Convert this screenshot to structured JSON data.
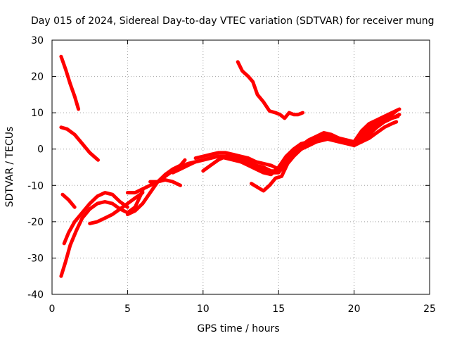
{
  "chart_data": {
    "type": "line",
    "title": "Day 015 of 2024, Sidereal Day-to-day VTEC variation (SDTVAR) for receiver mung",
    "xlabel": "GPS time / hours",
    "ylabel": "SDTVAR / TECUs",
    "xlim": [
      0,
      25
    ],
    "ylim": [
      -40,
      30
    ],
    "xticks": [
      0,
      5,
      10,
      15,
      20,
      25
    ],
    "yticks": [
      -40,
      -30,
      -20,
      -10,
      0,
      10,
      20,
      30
    ],
    "xtick_labels": [
      "0",
      "5",
      "10",
      "15",
      "20",
      "25"
    ],
    "ytick_labels": [
      "-40",
      "-30",
      "-20",
      "-10",
      "0",
      "10",
      "20",
      "30"
    ],
    "grid": true,
    "legend": "none",
    "color": "#ff0000",
    "series": [
      {
        "x": [
          0.6,
          0.9,
          1.2,
          1.5,
          1.75
        ],
        "y": [
          25.5,
          22,
          18,
          14.5,
          11
        ]
      },
      {
        "x": [
          0.6,
          1.0,
          1.5,
          2.0,
          2.5,
          3.05
        ],
        "y": [
          6,
          5.5,
          4,
          1.5,
          -1,
          -3
        ]
      },
      {
        "x": [
          0.7,
          1.1,
          1.5
        ],
        "y": [
          -12.5,
          -14,
          -16
        ]
      },
      {
        "x": [
          0.8,
          1.1,
          1.5,
          2.0,
          2.5,
          3.0,
          3.5,
          4.0,
          4.5,
          5.0
        ],
        "y": [
          -26,
          -23,
          -20,
          -17.5,
          -15,
          -13,
          -12,
          -12.5,
          -14.5,
          -16
        ]
      },
      {
        "x": [
          0.6,
          0.9,
          1.2,
          1.6,
          2.0,
          2.5,
          3.0,
          3.5,
          4.0,
          4.5,
          5.0,
          5.5,
          6.0
        ],
        "y": [
          -35,
          -31,
          -26.5,
          -22.5,
          -19,
          -16.5,
          -15,
          -14.5,
          -15,
          -16.5,
          -17.5,
          -16,
          -11.5
        ]
      },
      {
        "x": [
          2.5,
          3.0,
          3.5,
          4.0,
          4.5,
          5.0,
          5.5,
          6.0
        ],
        "y": [
          -20.5,
          -20,
          -19,
          -18,
          -16.5,
          -15,
          -13.5,
          -12
        ]
      },
      {
        "x": [
          5.0,
          5.5,
          6.0,
          6.5,
          7.0,
          7.5,
          8.0,
          8.5,
          8.8
        ],
        "y": [
          -18,
          -17,
          -15,
          -12,
          -9,
          -7,
          -5.5,
          -4.5,
          -3
        ]
      },
      {
        "x": [
          5.0,
          5.5,
          6.0,
          6.5,
          7.0,
          7.5,
          8.0,
          8.5,
          9.0,
          9.5,
          10.0,
          10.5,
          11.0,
          11.5,
          12.0,
          12.5,
          13.0,
          13.5,
          14.0,
          14.5,
          15.0,
          15.5,
          16.0,
          16.5,
          17.0,
          17.5,
          18.0,
          18.5,
          19.0,
          19.5,
          20.0,
          20.5,
          21.0,
          21.5,
          22.0,
          22.5,
          22.8
        ],
        "y": [
          -12,
          -12,
          -11,
          -10,
          -9,
          -7.5,
          -6,
          -5,
          -4,
          -3.5,
          -3,
          -2.5,
          -2,
          -2,
          -2.5,
          -3.5,
          -4.5,
          -5.5,
          -6.5,
          -7,
          -5,
          -2,
          0,
          1.5,
          2,
          3,
          3.5,
          3,
          2.5,
          2,
          1.5,
          2,
          3,
          4.5,
          6,
          7,
          7.5
        ]
      },
      {
        "x": [
          6.5,
          7.0,
          7.5,
          8.0,
          8.5
        ],
        "y": [
          -9,
          -9,
          -8.5,
          -9,
          -10
        ]
      },
      {
        "x": [
          8.0,
          8.5,
          9.0,
          9.5,
          10.0,
          10.5,
          11.0,
          11.5,
          12.0,
          12.5,
          13.0,
          13.5,
          14.0,
          14.5,
          15.0,
          15.5,
          16.0,
          16.5,
          17.0,
          17.5,
          18.0,
          18.5,
          19.0,
          19.5,
          20.0,
          20.5,
          21.0,
          21.5,
          22.0,
          22.5,
          22.8
        ],
        "y": [
          -6.5,
          -5.5,
          -4.5,
          -3.5,
          -3,
          -2.5,
          -2,
          -2.5,
          -3,
          -3.5,
          -4,
          -4.5,
          -5,
          -6,
          -6,
          -3,
          -0.5,
          1,
          2,
          3,
          4,
          3.5,
          3,
          2,
          1,
          4,
          6,
          7,
          8.5,
          9.5,
          10.5
        ]
      },
      {
        "x": [
          10.0,
          10.5,
          11.0,
          11.5,
          12.0,
          12.5,
          13.0,
          13.5,
          14.0,
          14.5,
          15.0,
          15.5,
          16.0,
          16.5,
          17.0,
          17.5,
          18.0,
          18.5,
          19.0,
          19.5,
          20.0,
          20.5,
          21.0,
          21.5,
          22.0,
          22.5,
          22.9
        ],
        "y": [
          -6,
          -4.5,
          -3,
          -2,
          -1.5,
          -2,
          -2.5,
          -3.5,
          -4,
          -4.5,
          -5.5,
          -3,
          -1.5,
          0,
          1,
          2,
          3,
          2.5,
          2,
          1.5,
          1,
          3,
          5,
          6.5,
          7.5,
          8.5,
          9
        ]
      },
      {
        "x": [
          9.5,
          10.0,
          10.5,
          11.0,
          11.5,
          12.0,
          12.5,
          13.0,
          13.5,
          14.0,
          14.5,
          15.0,
          15.5,
          16.0,
          16.5,
          17.0,
          17.5,
          18.0,
          18.5,
          19.0,
          19.5,
          20.0,
          20.5,
          21.0,
          21.5,
          22.0,
          22.5,
          23.0
        ],
        "y": [
          -2.5,
          -2,
          -1.5,
          -1,
          -1,
          -1.5,
          -2.5,
          -3.5,
          -4.5,
          -5.5,
          -6.5,
          -6.5,
          -4,
          -1,
          1,
          2.5,
          3.5,
          4.5,
          4,
          3,
          2.5,
          2,
          5,
          7,
          8,
          9,
          10,
          11
        ]
      },
      {
        "x": [
          13.2,
          13.6,
          14.0,
          14.4,
          14.8,
          15.2,
          15.6,
          16.0,
          16.5,
          17.0,
          17.5,
          18.0,
          18.5,
          19.0,
          19.5,
          20.0,
          20.5,
          21.0,
          21.5,
          22.0,
          22.5,
          23.0
        ],
        "y": [
          -9.5,
          -10.5,
          -11.5,
          -10,
          -8,
          -7.5,
          -4,
          -2,
          0,
          1,
          2,
          2.5,
          3,
          2.5,
          2,
          1,
          2,
          4,
          6,
          7.5,
          8.5,
          9.5
        ]
      },
      {
        "x": [
          12.3,
          12.6,
          13.0,
          13.3,
          13.6,
          14.0,
          14.4,
          14.8,
          15.1,
          15.4,
          15.7,
          16.0,
          16.3,
          16.6
        ],
        "y": [
          24,
          21.5,
          20,
          18.5,
          15,
          13,
          10.5,
          10,
          9.5,
          8.5,
          10,
          9.5,
          9.5,
          10
        ]
      }
    ]
  }
}
